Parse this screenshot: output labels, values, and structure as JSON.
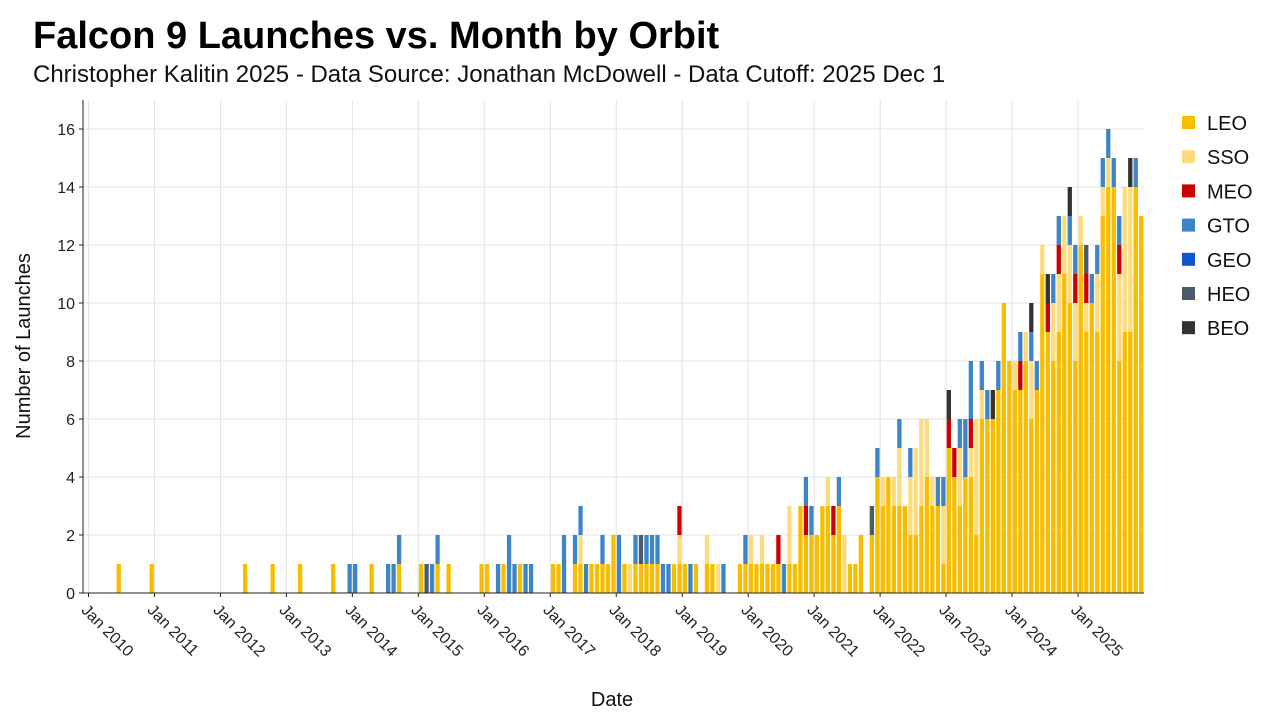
{
  "title": "Falcon 9 Launches vs. Month by Orbit",
  "subtitle": "Christopher Kalitin 2025 - Data Source: Jonathan McDowell - Data Cutoff: 2025 Dec 1",
  "chart_data": {
    "type": "bar",
    "stacked": true,
    "xlabel": "Date",
    "ylabel": "Number of Launches",
    "ylim": [
      0,
      17
    ],
    "yticks": [
      0,
      2,
      4,
      6,
      8,
      10,
      12,
      14,
      16
    ],
    "grid": true,
    "legend_position": "right",
    "xtick_labels": [
      "Jan 2010",
      "Jan 2011",
      "Jan 2012",
      "Jan 2013",
      "Jan 2014",
      "Jan 2015",
      "Jan 2016",
      "Jan 2017",
      "Jan 2018",
      "Jan 2019",
      "Jan 2020",
      "Jan 2021",
      "Jan 2022",
      "Jan 2023",
      "Jan 2024",
      "Jan 2025"
    ],
    "series": [
      {
        "name": "LEO",
        "color": "#F7BE00"
      },
      {
        "name": "SSO",
        "color": "#FCDC7E"
      },
      {
        "name": "MEO",
        "color": "#CC0000"
      },
      {
        "name": "GTO",
        "color": "#3D85C6"
      },
      {
        "name": "GEO",
        "color": "#1155CC"
      },
      {
        "name": "HEO",
        "color": "#4A5A6A"
      },
      {
        "name": "BEO",
        "color": "#333333"
      }
    ],
    "months": [
      {
        "x": "2010-06",
        "LEO": 1
      },
      {
        "x": "2010-12",
        "LEO": 1
      },
      {
        "x": "2012-05",
        "LEO": 1
      },
      {
        "x": "2012-10",
        "LEO": 1
      },
      {
        "x": "2013-03",
        "LEO": 1
      },
      {
        "x": "2013-09",
        "LEO": 1
      },
      {
        "x": "2013-12",
        "GTO": 1
      },
      {
        "x": "2014-01",
        "GTO": 1
      },
      {
        "x": "2014-04",
        "LEO": 1
      },
      {
        "x": "2014-07",
        "GTO": 1
      },
      {
        "x": "2014-08",
        "GTO": 1
      },
      {
        "x": "2014-09",
        "LEO": 1,
        "GTO": 1
      },
      {
        "x": "2015-01",
        "LEO": 1
      },
      {
        "x": "2015-02",
        "HEO": 1
      },
      {
        "x": "2015-03",
        "GTO": 1
      },
      {
        "x": "2015-04",
        "LEO": 1,
        "GTO": 1
      },
      {
        "x": "2015-06",
        "LEO": 1
      },
      {
        "x": "2015-12",
        "LEO": 1
      },
      {
        "x": "2016-01",
        "LEO": 1
      },
      {
        "x": "2016-03",
        "GTO": 1
      },
      {
        "x": "2016-04",
        "LEO": 1
      },
      {
        "x": "2016-05",
        "GTO": 2
      },
      {
        "x": "2016-06",
        "GTO": 1
      },
      {
        "x": "2016-07",
        "LEO": 1
      },
      {
        "x": "2016-08",
        "GTO": 1
      },
      {
        "x": "2016-09",
        "GTO": 1
      },
      {
        "x": "2017-01",
        "LEO": 1
      },
      {
        "x": "2017-02",
        "LEO": 1
      },
      {
        "x": "2017-03",
        "GTO": 2
      },
      {
        "x": "2017-05",
        "LEO": 1,
        "GTO": 1
      },
      {
        "x": "2017-06",
        "LEO": 1,
        "SSO": 1,
        "GTO": 1
      },
      {
        "x": "2017-07",
        "GTO": 1
      },
      {
        "x": "2017-08",
        "LEO": 1
      },
      {
        "x": "2017-09",
        "LEO": 1
      },
      {
        "x": "2017-10",
        "LEO": 1,
        "GTO": 1
      },
      {
        "x": "2017-11",
        "LEO": 1
      },
      {
        "x": "2017-12",
        "LEO": 2
      },
      {
        "x": "2018-01",
        "GTO": 2
      },
      {
        "x": "2018-02",
        "LEO": 1
      },
      {
        "x": "2018-03",
        "SSO": 1
      },
      {
        "x": "2018-04",
        "LEO": 1,
        "GTO": 1
      },
      {
        "x": "2018-05",
        "LEO": 1,
        "HEO": 1
      },
      {
        "x": "2018-06",
        "LEO": 1,
        "GTO": 1
      },
      {
        "x": "2018-07",
        "LEO": 1,
        "GTO": 1
      },
      {
        "x": "2018-08",
        "LEO": 1,
        "GTO": 1
      },
      {
        "x": "2018-09",
        "GTO": 1
      },
      {
        "x": "2018-10",
        "GTO": 1
      },
      {
        "x": "2018-11",
        "LEO": 1
      },
      {
        "x": "2018-12",
        "LEO": 1,
        "SSO": 1,
        "MEO": 1
      },
      {
        "x": "2019-01",
        "LEO": 1
      },
      {
        "x": "2019-02",
        "GTO": 1
      },
      {
        "x": "2019-03",
        "LEO": 1
      },
      {
        "x": "2019-05",
        "LEO": 1,
        "SSO": 1
      },
      {
        "x": "2019-06",
        "LEO": 1
      },
      {
        "x": "2019-07",
        "SSO": 1
      },
      {
        "x": "2019-08",
        "GTO": 1
      },
      {
        "x": "2019-11",
        "LEO": 1
      },
      {
        "x": "2019-12",
        "LEO": 1,
        "GTO": 1
      },
      {
        "x": "2020-01",
        "LEO": 1,
        "SSO": 1
      },
      {
        "x": "2020-02",
        "LEO": 1
      },
      {
        "x": "2020-03",
        "LEO": 1,
        "SSO": 1
      },
      {
        "x": "2020-04",
        "LEO": 1
      },
      {
        "x": "2020-05",
        "LEO": 1
      },
      {
        "x": "2020-06",
        "LEO": 1,
        "MEO": 1
      },
      {
        "x": "2020-07",
        "GTO": 1
      },
      {
        "x": "2020-08",
        "LEO": 1,
        "SSO": 2
      },
      {
        "x": "2020-09",
        "LEO": 1
      },
      {
        "x": "2020-10",
        "LEO": 3
      },
      {
        "x": "2020-11",
        "LEO": 2,
        "MEO": 1,
        "GTO": 1
      },
      {
        "x": "2020-12",
        "LEO": 2,
        "GTO": 1
      },
      {
        "x": "2021-01",
        "LEO": 2
      },
      {
        "x": "2021-02",
        "LEO": 3
      },
      {
        "x": "2021-03",
        "LEO": 3,
        "SSO": 1
      },
      {
        "x": "2021-04",
        "LEO": 2,
        "MEO": 1
      },
      {
        "x": "2021-05",
        "LEO": 3,
        "GTO": 1
      },
      {
        "x": "2021-06",
        "SSO": 2
      },
      {
        "x": "2021-07",
        "LEO": 1
      },
      {
        "x": "2021-08",
        "LEO": 1
      },
      {
        "x": "2021-09",
        "LEO": 2
      },
      {
        "x": "2021-11",
        "LEO": 2,
        "HEO": 1
      },
      {
        "x": "2021-12",
        "LEO": 4,
        "GTO": 1
      },
      {
        "x": "2022-01",
        "LEO": 3,
        "SSO": 1
      },
      {
        "x": "2022-02",
        "LEO": 4
      },
      {
        "x": "2022-03",
        "LEO": 3,
        "SSO": 1
      },
      {
        "x": "2022-04",
        "LEO": 3,
        "SSO": 2,
        "GTO": 1
      },
      {
        "x": "2022-05",
        "LEO": 3
      },
      {
        "x": "2022-06",
        "LEO": 2,
        "SSO": 2,
        "GTO": 1
      },
      {
        "x": "2022-07",
        "LEO": 2,
        "SSO": 3
      },
      {
        "x": "2022-08",
        "LEO": 3,
        "SSO": 3
      },
      {
        "x": "2022-09",
        "LEO": 4,
        "SSO": 2
      },
      {
        "x": "2022-10",
        "LEO": 3,
        "SSO": 1
      },
      {
        "x": "2022-11",
        "GTO": 1,
        "LEO": 3
      },
      {
        "x": "2022-12",
        "LEO": 1,
        "SSO": 2,
        "GTO": 1
      },
      {
        "x": "2023-01",
        "LEO": 5,
        "MEO": 1,
        "BEO": 1
      },
      {
        "x": "2023-02",
        "LEO": 4,
        "MEO": 1
      },
      {
        "x": "2023-03",
        "LEO": 3,
        "SSO": 2,
        "GTO": 1
      },
      {
        "x": "2023-04",
        "LEO": 4,
        "GTO": 2
      },
      {
        "x": "2023-05",
        "LEO": 4,
        "SSO": 1,
        "MEO": 1,
        "GTO": 2
      },
      {
        "x": "2023-06",
        "LEO": 2,
        "SSO": 4
      },
      {
        "x": "2023-07",
        "LEO": 6,
        "SSO": 1,
        "GTO": 1
      },
      {
        "x": "2023-08",
        "LEO": 6,
        "GTO": 1
      },
      {
        "x": "2023-09",
        "LEO": 6,
        "BEO": 1
      },
      {
        "x": "2023-10",
        "LEO": 7,
        "GTO": 1
      },
      {
        "x": "2023-11",
        "LEO": 10
      },
      {
        "x": "2023-12",
        "LEO": 8
      },
      {
        "x": "2024-01",
        "LEO": 7,
        "SSO": 1
      },
      {
        "x": "2024-02",
        "LEO": 7,
        "MEO": 1,
        "GTO": 1
      },
      {
        "x": "2024-03",
        "LEO": 8,
        "SSO": 1
      },
      {
        "x": "2024-04",
        "LEO": 6,
        "SSO": 2,
        "GTO": 1,
        "BEO": 1
      },
      {
        "x": "2024-05",
        "LEO": 7,
        "GTO": 1
      },
      {
        "x": "2024-06",
        "LEO": 11,
        "SSO": 1
      },
      {
        "x": "2024-07",
        "LEO": 9,
        "MEO": 1,
        "BEO": 1
      },
      {
        "x": "2024-08",
        "LEO": 8,
        "SSO": 2,
        "GTO": 1
      },
      {
        "x": "2024-09",
        "LEO": 9,
        "SSO": 2,
        "MEO": 1,
        "GTO": 1
      },
      {
        "x": "2024-10",
        "LEO": 11,
        "SSO": 2
      },
      {
        "x": "2024-11",
        "LEO": 10,
        "SSO": 2,
        "GTO": 1,
        "BEO": 1
      },
      {
        "x": "2024-12",
        "LEO": 8,
        "SSO": 2,
        "MEO": 1,
        "GTO": 1
      },
      {
        "x": "2025-01",
        "LEO": 12,
        "SSO": 1
      },
      {
        "x": "2025-02",
        "LEO": 9,
        "SSO": 1,
        "MEO": 1,
        "HEO": 1
      },
      {
        "x": "2025-03",
        "LEO": 10,
        "GTO": 1
      },
      {
        "x": "2025-04",
        "LEO": 9,
        "SSO": 2,
        "GTO": 1
      },
      {
        "x": "2025-05",
        "LEO": 13,
        "SSO": 1,
        "GTO": 1
      },
      {
        "x": "2025-06",
        "LEO": 14,
        "SSO": 1,
        "GTO": 1
      },
      {
        "x": "2025-07",
        "LEO": 14,
        "GTO": 1
      },
      {
        "x": "2025-08",
        "LEO": 8,
        "SSO": 3,
        "MEO": 1,
        "GTO": 1
      },
      {
        "x": "2025-09",
        "LEO": 9,
        "SSO": 5
      },
      {
        "x": "2025-10",
        "LEO": 9,
        "SSO": 5,
        "BEO": 1
      },
      {
        "x": "2025-11",
        "LEO": 14,
        "GTO": 1
      },
      {
        "x": "2025-12",
        "LEO": 13
      }
    ]
  }
}
